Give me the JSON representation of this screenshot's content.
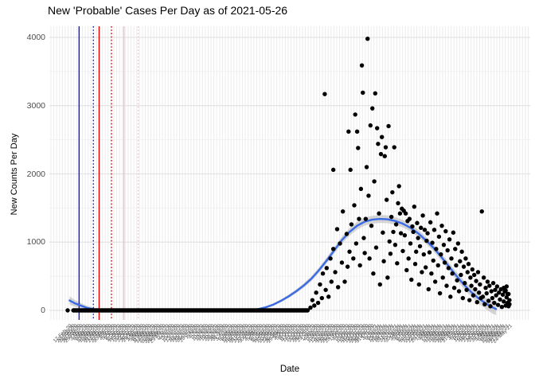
{
  "title": "New 'Probable' Cases Per Day as of 2021-05-26",
  "chart_data": {
    "type": "scatter",
    "title": "New 'Probable' Cases Per Day as of 2021-05-26",
    "xlabel": "Date",
    "ylabel": "New Counts Per Day",
    "ylim": [
      0,
      4000
    ],
    "y_major_ticks": [
      0,
      1000,
      2000,
      3000,
      4000
    ],
    "y_minor_ticks": [
      500,
      1500,
      2500,
      3500
    ],
    "grid": true,
    "legend": "none",
    "x_start_date": "17-Feb-20",
    "x_end_date": "26-May-21",
    "x_tick_step_days": 3,
    "point_color": "#000000",
    "smooth_color": "#3b6be4",
    "band_color": "#a6a6a6",
    "grid_major_color": "#e3e3e3",
    "grid_minor_color": "#f0f0f0",
    "x_tick_labels": [
      "17-Feb-20",
      "20-Feb-20",
      "23-Feb-20",
      "26-Feb-20",
      "29-Feb-20",
      "3-Mar-20",
      "6-Mar-20",
      "9-Mar-20",
      "12-Mar-20",
      "15-Mar-20",
      "18-Mar-20",
      "21-Mar-20",
      "24-Mar-20",
      "27-Mar-20",
      "30-Mar-20",
      "2-Apr-20",
      "5-Apr-20",
      "8-Apr-20",
      "11-Apr-20",
      "14-Apr-20",
      "17-Apr-20",
      "20-Apr-20",
      "23-Apr-20",
      "26-Apr-20",
      "29-Apr-20",
      "2-May-20",
      "5-May-20",
      "8-May-20",
      "11-May-20",
      "14-May-20",
      "17-May-20",
      "20-May-20",
      "23-May-20",
      "26-May-20",
      "29-May-20",
      "1-Jun-20",
      "4-Jun-20",
      "7-Jun-20",
      "10-Jun-20",
      "13-Jun-20",
      "16-Jun-20",
      "19-Jun-20",
      "22-Jun-20",
      "25-Jun-20",
      "28-Jun-20",
      "1-Jul-20",
      "4-Jul-20",
      "7-Jul-20",
      "10-Jul-20",
      "13-Jul-20",
      "16-Jul-20",
      "19-Jul-20",
      "22-Jul-20",
      "25-Jul-20",
      "28-Jul-20",
      "31-Jul-20",
      "3-Aug-20",
      "6-Aug-20",
      "9-Aug-20",
      "12-Aug-20",
      "15-Aug-20",
      "18-Aug-20",
      "21-Aug-20",
      "24-Aug-20",
      "27-Aug-20",
      "30-Aug-20",
      "2-Sep-20",
      "5-Sep-20",
      "8-Sep-20",
      "11-Sep-20",
      "14-Sep-20",
      "17-Sep-20",
      "20-Sep-20",
      "23-Sep-20",
      "26-Sep-20",
      "29-Sep-20",
      "2-Oct-20",
      "5-Oct-20",
      "8-Oct-20",
      "11-Oct-20",
      "14-Oct-20",
      "17-Oct-20",
      "20-Oct-20",
      "23-Oct-20",
      "26-Oct-20",
      "29-Oct-20",
      "1-Nov-20",
      "4-Nov-20",
      "7-Nov-20",
      "10-Nov-20",
      "13-Nov-20",
      "16-Nov-20",
      "19-Nov-20",
      "22-Nov-20",
      "25-Nov-20",
      "28-Nov-20",
      "1-Dec-20",
      "4-Dec-20",
      "7-Dec-20",
      "10-Dec-20",
      "13-Dec-20",
      "16-Dec-20",
      "19-Dec-20",
      "22-Dec-20",
      "25-Dec-20",
      "28-Dec-20",
      "31-Dec-20",
      "3-Jan-21",
      "6-Jan-21",
      "9-Jan-21",
      "12-Jan-21",
      "15-Jan-21",
      "18-Jan-21",
      "21-Jan-21",
      "24-Jan-21",
      "27-Jan-21",
      "30-Jan-21",
      "2-Feb-21",
      "5-Feb-21",
      "8-Feb-21",
      "11-Feb-21",
      "14-Feb-21",
      "17-Feb-21",
      "20-Feb-21",
      "23-Feb-21",
      "26-Feb-21",
      "1-Mar-21",
      "4-Mar-21",
      "7-Mar-21",
      "10-Mar-21",
      "13-Mar-21",
      "16-Mar-21",
      "19-Mar-21",
      "22-Mar-21",
      "25-Mar-21",
      "28-Mar-21",
      "31-Mar-21",
      "3-Apr-21",
      "6-Apr-21",
      "9-Apr-21",
      "12-Apr-21",
      "15-Apr-21",
      "18-Apr-21",
      "21-Apr-21",
      "24-Apr-21",
      "27-Apr-21",
      "30-Apr-21",
      "3-May-21",
      "6-May-21",
      "9-May-21",
      "12-May-21",
      "15-May-21",
      "18-May-21",
      "21-May-21",
      "24-May-21"
    ],
    "vlines": [
      {
        "day": 12,
        "color": "#1515dd",
        "style": "solid"
      },
      {
        "day": 27,
        "color": "#1515dd",
        "style": "dotted"
      },
      {
        "day": 33,
        "color": "#e00000",
        "style": "solid"
      },
      {
        "day": 46,
        "color": "#e00000",
        "style": "dotted"
      },
      {
        "day": 59,
        "color": "#f7b6c2",
        "style": "solid"
      },
      {
        "day": 74,
        "color": "#f7b6c2",
        "style": "dotted"
      }
    ],
    "first_point": [
      0,
      0
    ],
    "zero_run": {
      "start_day": 6,
      "end_day": 252,
      "step_days": 1,
      "count": 0
    },
    "smooth": [
      [
        2,
        145
      ],
      [
        8,
        100
      ],
      [
        13,
        75
      ],
      [
        20,
        38
      ],
      [
        28,
        16
      ],
      [
        36,
        6
      ],
      [
        45,
        2
      ],
      [
        60,
        0
      ],
      [
        90,
        0
      ],
      [
        120,
        0
      ],
      [
        150,
        0
      ],
      [
        180,
        0
      ],
      [
        193,
        2
      ],
      [
        200,
        18
      ],
      [
        208,
        45
      ],
      [
        216,
        85
      ],
      [
        224,
        140
      ],
      [
        232,
        205
      ],
      [
        240,
        280
      ],
      [
        248,
        365
      ],
      [
        256,
        465
      ],
      [
        264,
        590
      ],
      [
        272,
        730
      ],
      [
        280,
        880
      ],
      [
        288,
        1030
      ],
      [
        296,
        1150
      ],
      [
        304,
        1240
      ],
      [
        312,
        1300
      ],
      [
        320,
        1330
      ],
      [
        328,
        1340
      ],
      [
        336,
        1335
      ],
      [
        344,
        1310
      ],
      [
        352,
        1270
      ],
      [
        360,
        1210
      ],
      [
        368,
        1130
      ],
      [
        376,
        1030
      ],
      [
        384,
        920
      ],
      [
        392,
        790
      ],
      [
        400,
        650
      ],
      [
        408,
        510
      ],
      [
        416,
        380
      ],
      [
        424,
        265
      ],
      [
        432,
        170
      ],
      [
        440,
        95
      ],
      [
        446,
        45
      ],
      [
        450,
        20
      ]
    ],
    "ci_half_width": [
      60,
      48,
      40,
      30,
      22,
      16,
      12,
      10,
      10,
      10,
      10,
      10,
      12,
      14,
      16,
      18,
      20,
      24,
      28,
      32,
      36,
      40,
      44,
      48,
      52,
      55,
      57,
      58,
      58,
      58,
      57,
      56,
      55,
      54,
      53,
      52,
      52,
      53,
      55,
      58,
      62,
      68,
      75,
      84,
      92,
      100
    ],
    "scatter": [
      [
        255,
        40
      ],
      [
        257,
        150
      ],
      [
        259,
        70
      ],
      [
        261,
        260
      ],
      [
        263,
        110
      ],
      [
        265,
        380
      ],
      [
        267,
        180
      ],
      [
        268,
        540
      ],
      [
        270,
        3170
      ],
      [
        271,
        300
      ],
      [
        272,
        620
      ],
      [
        274,
        200
      ],
      [
        276,
        760
      ],
      [
        277,
        420
      ],
      [
        279,
        2060
      ],
      [
        279,
        900
      ],
      [
        281,
        560
      ],
      [
        283,
        1190
      ],
      [
        284,
        340
      ],
      [
        286,
        980
      ],
      [
        288,
        700
      ],
      [
        289,
        1450
      ],
      [
        291,
        420
      ],
      [
        293,
        1120
      ],
      [
        294,
        640
      ],
      [
        295,
        2620
      ],
      [
        296,
        860
      ],
      [
        297,
        2060
      ],
      [
        298,
        1260
      ],
      [
        300,
        760
      ],
      [
        301,
        1540
      ],
      [
        302,
        2870
      ],
      [
        303,
        980
      ],
      [
        304,
        2620
      ],
      [
        305,
        2380
      ],
      [
        306,
        1340
      ],
      [
        307,
        660
      ],
      [
        308,
        1780
      ],
      [
        309,
        3590
      ],
      [
        310,
        3190
      ],
      [
        311,
        1060
      ],
      [
        312,
        840
      ],
      [
        313,
        1340
      ],
      [
        314,
        2100
      ],
      [
        315,
        3980
      ],
      [
        316,
        1680
      ],
      [
        317,
        760
      ],
      [
        318,
        2710
      ],
      [
        319,
        1240
      ],
      [
        320,
        2960
      ],
      [
        321,
        540
      ],
      [
        322,
        1890
      ],
      [
        323,
        3180
      ],
      [
        324,
        920
      ],
      [
        325,
        2670
      ],
      [
        326,
        2440
      ],
      [
        327,
        1420
      ],
      [
        328,
        380
      ],
      [
        329,
        2290
      ],
      [
        330,
        2540
      ],
      [
        331,
        1140
      ],
      [
        332,
        720
      ],
      [
        333,
        2260
      ],
      [
        334,
        2390
      ],
      [
        335,
        1620
      ],
      [
        336,
        480
      ],
      [
        337,
        2700
      ],
      [
        338,
        1010
      ],
      [
        339,
        830
      ],
      [
        340,
        1370
      ],
      [
        341,
        1730
      ],
      [
        342,
        1150
      ],
      [
        343,
        2390
      ],
      [
        344,
        960
      ],
      [
        345,
        1260
      ],
      [
        346,
        690
      ],
      [
        347,
        1570
      ],
      [
        348,
        1820
      ],
      [
        349,
        1420
      ],
      [
        350,
        1130
      ],
      [
        351,
        1490
      ],
      [
        352,
        870
      ],
      [
        353,
        1460
      ],
      [
        354,
        1100
      ],
      [
        355,
        1420
      ],
      [
        356,
        590
      ],
      [
        357,
        1310
      ],
      [
        358,
        760
      ],
      [
        359,
        1340
      ],
      [
        360,
        980
      ],
      [
        361,
        450
      ],
      [
        362,
        1230
      ],
      [
        363,
        1150
      ],
      [
        364,
        1520
      ],
      [
        365,
        680
      ],
      [
        366,
        860
      ],
      [
        367,
        1280
      ],
      [
        368,
        1060
      ],
      [
        369,
        380
      ],
      [
        370,
        940
      ],
      [
        371,
        1210
      ],
      [
        372,
        560
      ],
      [
        373,
        1390
      ],
      [
        374,
        820
      ],
      [
        375,
        1180
      ],
      [
        376,
        630
      ],
      [
        377,
        1020
      ],
      [
        378,
        1130
      ],
      [
        379,
        310
      ],
      [
        380,
        850
      ],
      [
        381,
        1290
      ],
      [
        382,
        540
      ],
      [
        383,
        990
      ],
      [
        384,
        730
      ],
      [
        385,
        1180
      ],
      [
        386,
        420
      ],
      [
        387,
        900
      ],
      [
        388,
        1420
      ],
      [
        389,
        660
      ],
      [
        390,
        1080
      ],
      [
        391,
        250
      ],
      [
        392,
        820
      ],
      [
        393,
        1240
      ],
      [
        394,
        480
      ],
      [
        395,
        960
      ],
      [
        396,
        700
      ],
      [
        397,
        1160
      ],
      [
        398,
        360
      ],
      [
        399,
        880
      ],
      [
        400,
        620
      ],
      [
        401,
        1040
      ],
      [
        402,
        200
      ],
      [
        403,
        760
      ],
      [
        404,
        540
      ],
      [
        405,
        1140
      ],
      [
        406,
        330
      ],
      [
        407,
        900
      ],
      [
        408,
        660
      ],
      [
        409,
        440
      ],
      [
        410,
        980
      ],
      [
        411,
        280
      ],
      [
        412,
        720
      ],
      [
        413,
        520
      ],
      [
        414,
        860
      ],
      [
        415,
        180
      ],
      [
        416,
        640
      ],
      [
        417,
        400
      ],
      [
        418,
        760
      ],
      [
        419,
        300
      ],
      [
        420,
        560
      ],
      [
        421,
        680
      ],
      [
        422,
        150
      ],
      [
        423,
        480
      ],
      [
        424,
        360
      ],
      [
        425,
        600
      ],
      [
        426,
        220
      ],
      [
        427,
        520
      ],
      [
        428,
        310
      ],
      [
        429,
        430
      ],
      [
        430,
        120
      ],
      [
        431,
        560
      ],
      [
        432,
        260
      ],
      [
        433,
        380
      ],
      [
        434,
        180
      ],
      [
        435,
        1450
      ],
      [
        436,
        200
      ],
      [
        437,
        480
      ],
      [
        438,
        90
      ],
      [
        439,
        330
      ],
      [
        440,
        250
      ],
      [
        441,
        420
      ],
      [
        442,
        140
      ],
      [
        443,
        360
      ],
      [
        444,
        60
      ],
      [
        445,
        280
      ],
      [
        446,
        180
      ],
      [
        447,
        400
      ],
      [
        448,
        110
      ],
      [
        449,
        300
      ],
      [
        450,
        220
      ],
      [
        451,
        350
      ],
      [
        452,
        80
      ],
      [
        453,
        260
      ],
      [
        454,
        160
      ],
      [
        455,
        310
      ],
      [
        456,
        50
      ],
      [
        457,
        230
      ],
      [
        458,
        130
      ],
      [
        458,
        330
      ],
      [
        459,
        280
      ],
      [
        460,
        70
      ],
      [
        460,
        290
      ],
      [
        461,
        190
      ],
      [
        461,
        350
      ],
      [
        462,
        110
      ],
      [
        462,
        240
      ],
      [
        463,
        240
      ],
      [
        463,
        60
      ],
      [
        464,
        150
      ],
      [
        464,
        90
      ]
    ]
  }
}
